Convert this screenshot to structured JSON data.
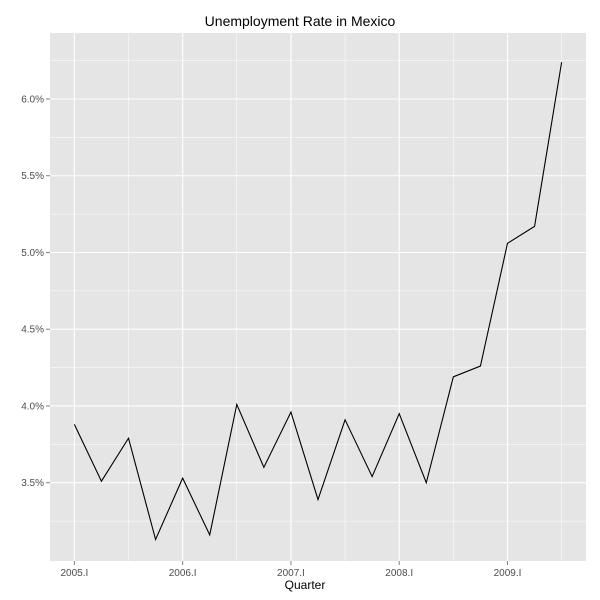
{
  "chart_data": {
    "type": "line",
    "title": "Unemployment Rate in Mexico",
    "xlabel": "Quarter",
    "ylabel": "",
    "x": [
      "2005.I",
      "2005.II",
      "2005.III",
      "2005.IV",
      "2006.I",
      "2006.II",
      "2006.III",
      "2006.IV",
      "2007.I",
      "2007.II",
      "2007.III",
      "2007.IV",
      "2008.I",
      "2008.II",
      "2008.III",
      "2008.IV",
      "2009.I",
      "2009.II",
      "2009.III"
    ],
    "series": [
      {
        "values": [
          3.88,
          3.51,
          3.79,
          3.13,
          3.53,
          3.16,
          4.01,
          3.6,
          3.96,
          3.39,
          3.91,
          3.54,
          3.95,
          3.5,
          4.19,
          4.26,
          5.06,
          5.17,
          6.24
        ],
        "color": "#000000"
      }
    ],
    "x_tick_labels": [
      "2005.I",
      "2006.I",
      "2007.I",
      "2008.I",
      "2009.I"
    ],
    "y_ticks": [
      3.5,
      4.0,
      4.5,
      5.0,
      5.5,
      6.0
    ],
    "y_tick_labels": [
      "3.5%",
      "4.0%",
      "4.5%",
      "5.0%",
      "5.5%",
      "6.0%"
    ],
    "ylim": [
      2.99,
      6.43
    ],
    "grid": true,
    "panel_background": "#e5e5e5",
    "grid_color": "#ffffff"
  }
}
